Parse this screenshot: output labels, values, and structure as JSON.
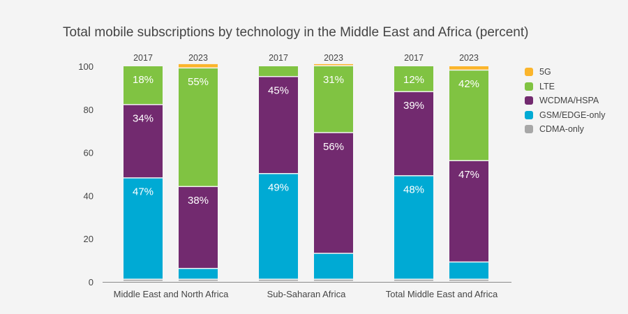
{
  "chart_data": {
    "type": "bar",
    "stacked": true,
    "title": "Total mobile subscriptions by technology in the Middle East and Africa (percent)",
    "xlabel": "",
    "ylabel": "",
    "ylim": [
      0,
      100
    ],
    "yticks": [
      "0",
      "20",
      "40",
      "60",
      "80",
      "100"
    ],
    "grid": false,
    "legend_position": "right",
    "groups": [
      {
        "name": "Middle East and North Africa",
        "years": [
          "2017",
          "2023"
        ]
      },
      {
        "name": "Sub-Saharan Africa",
        "years": [
          "2017",
          "2023"
        ]
      },
      {
        "name": "Total Middle East and Africa",
        "years": [
          "2017",
          "2023"
        ]
      }
    ],
    "categories": [
      "Middle East and North Africa 2017",
      "Middle East and North Africa 2023",
      "Sub-Saharan Africa 2017",
      "Sub-Saharan Africa 2023",
      "Total Middle East and Africa 2017",
      "Total Middle East and Africa 2023"
    ],
    "series": [
      {
        "name": "CDMA-only",
        "color": "#a7a7a7",
        "values": [
          1,
          1,
          1,
          1,
          1,
          1
        ],
        "labels": [
          "",
          "",
          "",
          "",
          "",
          ""
        ]
      },
      {
        "name": "GSM/EDGE-only",
        "color": "#00aad4",
        "values": [
          47,
          5,
          49,
          12,
          48,
          8
        ],
        "labels": [
          "47%",
          "",
          "49%",
          "",
          "48%",
          ""
        ]
      },
      {
        "name": "WCDMA/HSPA",
        "color": "#722a6f",
        "values": [
          34,
          38,
          45,
          56,
          39,
          47
        ],
        "labels": [
          "34%",
          "38%",
          "45%",
          "56%",
          "39%",
          "47%"
        ]
      },
      {
        "name": "LTE",
        "color": "#80c342",
        "values": [
          18,
          55,
          5,
          31,
          12,
          42
        ],
        "labels": [
          "18%",
          "55%",
          "",
          "31%",
          "12%",
          "42%"
        ]
      },
      {
        "name": "5G",
        "color": "#fbb52c",
        "values": [
          0,
          2,
          0,
          1,
          0,
          2
        ],
        "labels": [
          "",
          "",
          "",
          "",
          "",
          ""
        ]
      }
    ],
    "legend": [
      {
        "name": "5G",
        "color": "#fbb52c"
      },
      {
        "name": "LTE",
        "color": "#80c342"
      },
      {
        "name": "WCDMA/HSPA",
        "color": "#722a6f"
      },
      {
        "name": "GSM/EDGE-only",
        "color": "#00aad4"
      },
      {
        "name": "CDMA-only",
        "color": "#a7a7a7"
      }
    ]
  }
}
